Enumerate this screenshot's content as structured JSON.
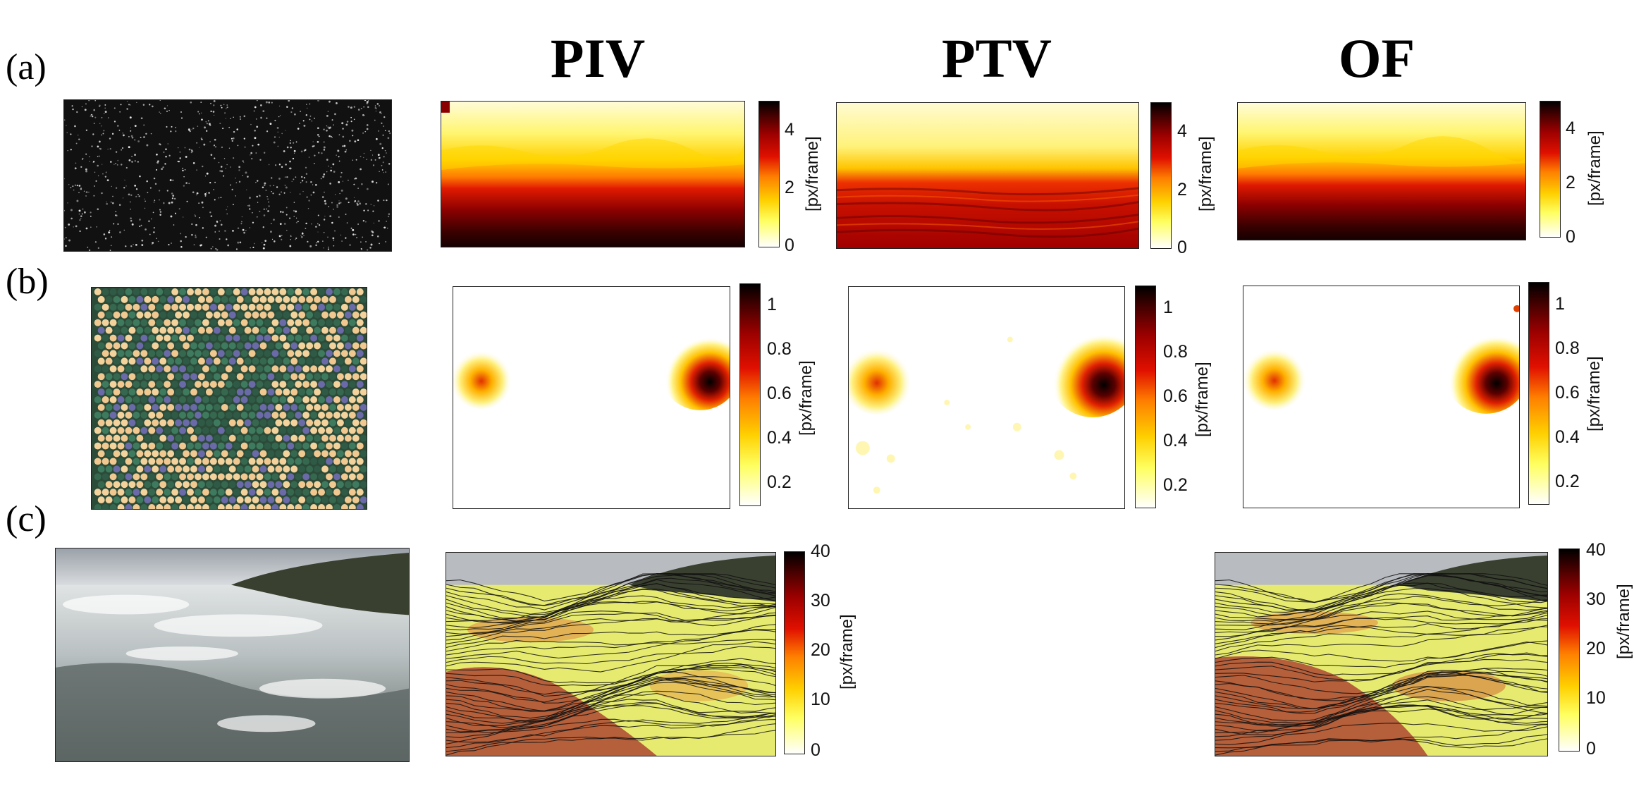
{
  "rows": [
    {
      "label": "(a)",
      "input_description": "synthetic particle image",
      "colorbar": {
        "ticks": [
          "0",
          "2",
          "4"
        ],
        "unit": "[px/frame]"
      }
    },
    {
      "label": "(b)",
      "input_description": "granular beads",
      "colorbar": {
        "ticks": [
          "0.2",
          "0.4",
          "0.6",
          "0.8",
          "1"
        ],
        "unit": "[px/frame]"
      }
    },
    {
      "label": "(c)",
      "input_description": "waterfall",
      "colorbar": {
        "ticks": [
          "0",
          "10",
          "20",
          "30",
          "40"
        ],
        "unit": "[px/frame]"
      }
    }
  ],
  "columns": [
    "PIV",
    "PTV",
    "OF"
  ],
  "colors": {
    "colormap_low": "#ffffff",
    "colormap_mid": "#ff8000",
    "colormap_high": "#000000"
  }
}
